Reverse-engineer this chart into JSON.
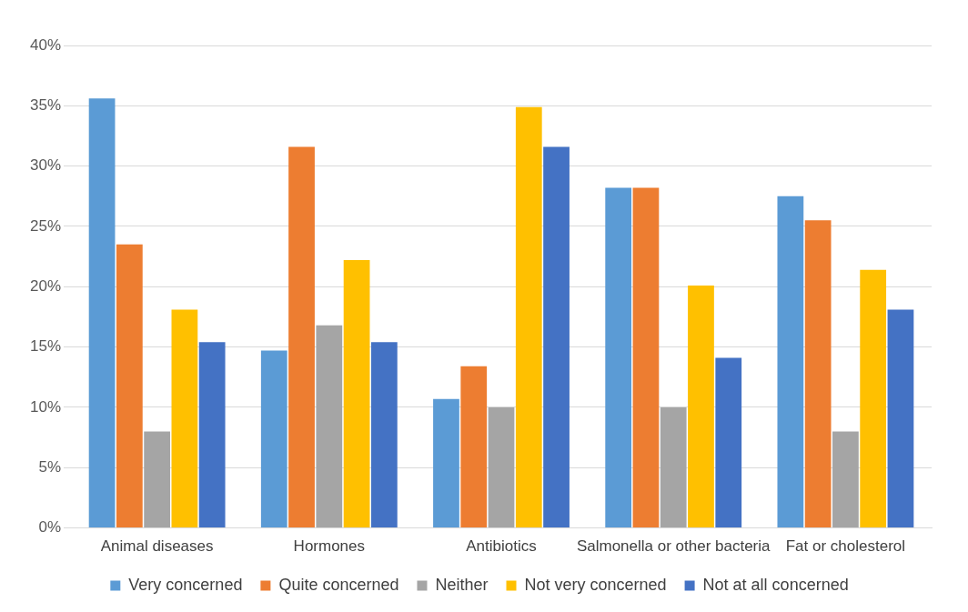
{
  "chart_data": {
    "type": "bar",
    "categories": [
      "Animal diseases",
      "Hormones",
      "Antibiotics",
      "Salmonella or other bacteria",
      "Fat or cholesterol"
    ],
    "series": [
      {
        "name": "Very concerned",
        "color": "#5b9bd5",
        "values": [
          35.6,
          14.7,
          10.7,
          28.2,
          27.5
        ]
      },
      {
        "name": "Quite concerned",
        "color": "#ed7d31",
        "values": [
          23.5,
          31.6,
          13.4,
          28.2,
          25.5
        ]
      },
      {
        "name": "Neither",
        "color": "#a5a5a5",
        "values": [
          8,
          16.8,
          10,
          10,
          8
        ]
      },
      {
        "name": "Not very concerned",
        "color": "#ffc000",
        "values": [
          18.1,
          22.2,
          34.9,
          20.1,
          21.4
        ]
      },
      {
        "name": "Not at all concerned",
        "color": "#4472c4",
        "values": [
          15.4,
          15.4,
          31.6,
          14.1,
          18.1
        ]
      }
    ],
    "ylim": [
      0,
      40
    ],
    "yticks": [
      {
        "value": 0,
        "label": "0%"
      },
      {
        "value": 5,
        "label": "5%"
      },
      {
        "value": 10,
        "label": "10%"
      },
      {
        "value": 15,
        "label": "15%"
      },
      {
        "value": 20,
        "label": "20%"
      },
      {
        "value": 25,
        "label": "25%"
      },
      {
        "value": 30,
        "label": "30%"
      },
      {
        "value": 35,
        "label": "35%"
      },
      {
        "value": 40,
        "label": "40%"
      }
    ],
    "grid": "y",
    "legend": "bottom"
  }
}
